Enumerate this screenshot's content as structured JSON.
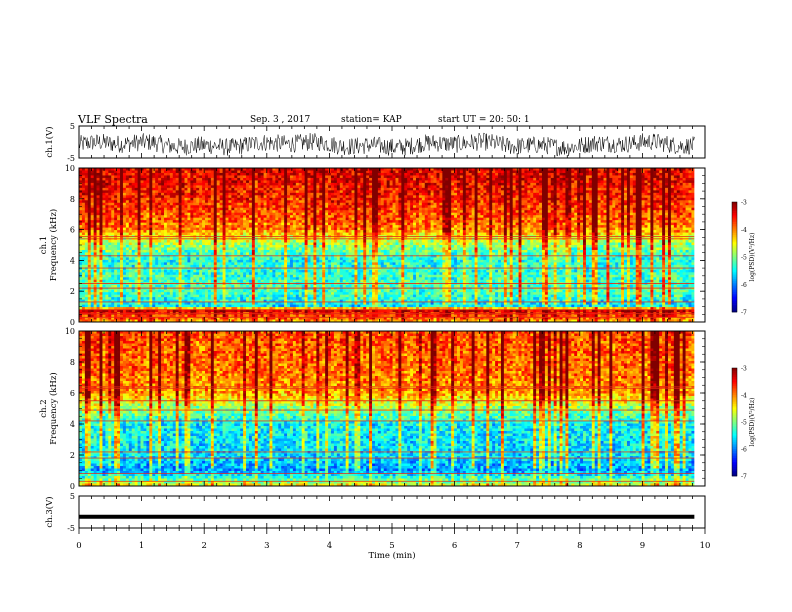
{
  "header": {
    "title": "VLF Spectra",
    "date": "Sep. 3  , 2017",
    "station": "station= KAP",
    "start_ut": "start  UT  =   20: 50: 1"
  },
  "chart_data": [
    {
      "type": "line",
      "name": "ch1-waveform",
      "ylabel": "ch.1(V)",
      "ylim": [
        -5,
        5
      ],
      "yticks": [
        5,
        -5
      ],
      "xlim": [
        0,
        10
      ],
      "data_extent_min": 9.83,
      "signal": {
        "mean": -0.8,
        "amplitude": 2.8
      }
    },
    {
      "type": "heatmap",
      "name": "ch1-spectrogram",
      "ylabel": "ch.1\nFrequency (kHz)",
      "ylim": [
        0,
        10
      ],
      "yticks": [
        0,
        2,
        4,
        6,
        8,
        10
      ],
      "xlim": [
        0,
        10
      ],
      "colorbar": {
        "label": "log(PSD)(V²/Hz)",
        "range": [
          -7,
          -3
        ],
        "ticks": [
          -3,
          -4,
          -5,
          -6,
          -7
        ]
      },
      "frequency_profile": [
        {
          "f": 0.0,
          "v": -4.2
        },
        {
          "f": 0.8,
          "v": -3.3
        },
        {
          "f": 1.0,
          "v": -5.6
        },
        {
          "f": 2.0,
          "v": -5.2
        },
        {
          "f": 4.0,
          "v": -5.4
        },
        {
          "f": 5.2,
          "v": -4.8
        },
        {
          "f": 6.0,
          "v": -4.0
        },
        {
          "f": 8.0,
          "v": -3.6
        },
        {
          "f": 10.0,
          "v": -3.4
        }
      ],
      "horizontal_lines_khz": [
        0.3,
        0.55,
        0.8,
        1.3,
        2.2,
        2.5,
        3.5,
        4.3,
        5.4,
        5.55
      ]
    },
    {
      "type": "heatmap",
      "name": "ch2-spectrogram",
      "ylabel": "ch.2\nFrequency (kHz)",
      "ylim": [
        0,
        10
      ],
      "yticks": [
        0,
        2,
        4,
        6,
        8,
        10
      ],
      "xlim": [
        0,
        10
      ],
      "colorbar": {
        "label": "log(PSD)(V²/Hz)",
        "range": [
          -7,
          -3
        ],
        "ticks": [
          -3,
          -4,
          -5,
          -6,
          -7
        ]
      },
      "frequency_profile": [
        {
          "f": 0.0,
          "v": -4.4
        },
        {
          "f": 0.3,
          "v": -5.0
        },
        {
          "f": 1.0,
          "v": -5.9
        },
        {
          "f": 2.0,
          "v": -5.6
        },
        {
          "f": 4.0,
          "v": -5.5
        },
        {
          "f": 5.0,
          "v": -4.9
        },
        {
          "f": 6.0,
          "v": -4.1
        },
        {
          "f": 8.0,
          "v": -3.9
        },
        {
          "f": 10.0,
          "v": -3.8
        }
      ],
      "horizontal_lines_khz": [
        0.3,
        0.8,
        1.8,
        2.2,
        4.2,
        4.9,
        5.5,
        6.3,
        6.4
      ]
    },
    {
      "type": "line",
      "name": "ch3-waveform",
      "ylabel": "ch.3(V)",
      "ylim": [
        -5,
        5
      ],
      "yticks": [
        5,
        -5
      ],
      "xlim": [
        0,
        10
      ],
      "xlabel": "Time (min)",
      "xticks": [
        0,
        1,
        2,
        3,
        4,
        5,
        6,
        7,
        8,
        9,
        10
      ],
      "data_extent_min": 9.83,
      "signal": {
        "mean": -1.5,
        "amplitude": 0.0
      }
    }
  ]
}
